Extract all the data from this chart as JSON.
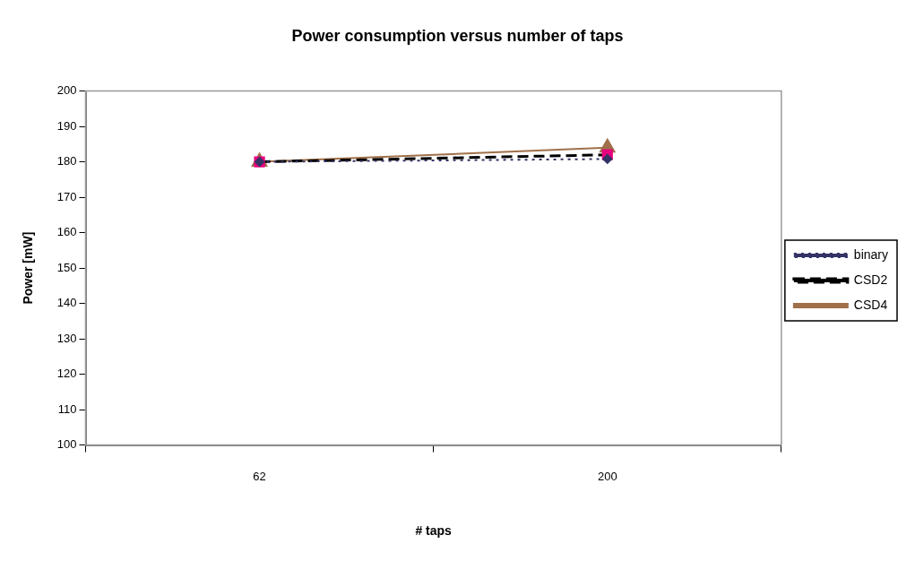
{
  "chart_data": {
    "type": "line",
    "title": "Power consumption versus number of taps",
    "xlabel": "# taps",
    "ylabel": "Power [mW]",
    "categories": [
      "62",
      "200"
    ],
    "series": [
      {
        "name": "binary",
        "color": "#333366",
        "values": [
          180,
          180.8
        ],
        "marker": "diamond",
        "line_style": "dotted"
      },
      {
        "name": "CSD2",
        "color": "#000000",
        "colors": [
          "#e6007e",
          "#e6007e"
        ],
        "values": [
          180,
          182
        ],
        "marker": "square",
        "line_style": "dashed"
      },
      {
        "name": "CSD4",
        "color": "#a0704a",
        "values": [
          180,
          184
        ],
        "marker": "triangle",
        "line_style": "solid"
      }
    ],
    "ylim": [
      100,
      200
    ],
    "yticks": [
      100,
      110,
      120,
      130,
      140,
      150,
      160,
      170,
      180,
      190,
      200
    ],
    "grid": false,
    "legend": "right"
  }
}
